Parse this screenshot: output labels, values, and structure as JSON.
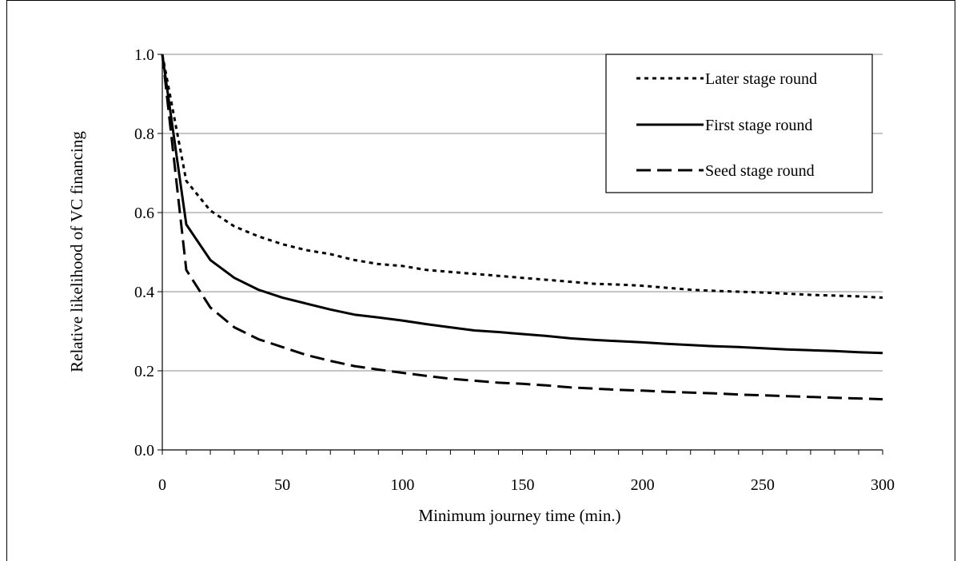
{
  "chart_data": {
    "type": "line",
    "xlabel": "Minimum journey time (min.)",
    "ylabel": "Relative likelihood of VC financing",
    "xlim": [
      0,
      300
    ],
    "ylim": [
      0,
      1.0
    ],
    "x_ticks": [
      0,
      50,
      100,
      150,
      200,
      250,
      300
    ],
    "y_ticks": [
      "0.0",
      "0.2",
      "0.4",
      "0.6",
      "0.8",
      "1.0"
    ],
    "grid": "horizontal",
    "legend_position": "top-right",
    "x": [
      0,
      10,
      20,
      30,
      40,
      50,
      60,
      70,
      80,
      90,
      100,
      110,
      120,
      130,
      140,
      150,
      160,
      170,
      180,
      190,
      200,
      210,
      220,
      230,
      240,
      250,
      260,
      270,
      280,
      290,
      300
    ],
    "series": [
      {
        "name": "Later stage round",
        "style": "dotted",
        "values": [
          1.0,
          0.68,
          0.605,
          0.565,
          0.54,
          0.52,
          0.505,
          0.495,
          0.48,
          0.47,
          0.465,
          0.455,
          0.45,
          0.445,
          0.44,
          0.435,
          0.43,
          0.425,
          0.42,
          0.418,
          0.415,
          0.41,
          0.405,
          0.402,
          0.4,
          0.398,
          0.395,
          0.392,
          0.39,
          0.388,
          0.385
        ]
      },
      {
        "name": "First stage round",
        "style": "solid",
        "values": [
          1.0,
          0.57,
          0.48,
          0.435,
          0.405,
          0.385,
          0.37,
          0.355,
          0.342,
          0.335,
          0.327,
          0.318,
          0.31,
          0.302,
          0.298,
          0.293,
          0.288,
          0.282,
          0.278,
          0.275,
          0.272,
          0.268,
          0.265,
          0.262,
          0.26,
          0.257,
          0.254,
          0.252,
          0.25,
          0.247,
          0.245
        ]
      },
      {
        "name": "Seed stage round",
        "style": "dashed",
        "values": [
          1.0,
          0.455,
          0.36,
          0.31,
          0.28,
          0.26,
          0.24,
          0.225,
          0.212,
          0.203,
          0.195,
          0.187,
          0.18,
          0.175,
          0.17,
          0.167,
          0.163,
          0.158,
          0.155,
          0.152,
          0.15,
          0.147,
          0.145,
          0.143,
          0.14,
          0.138,
          0.136,
          0.134,
          0.132,
          0.13,
          0.128
        ]
      }
    ]
  }
}
